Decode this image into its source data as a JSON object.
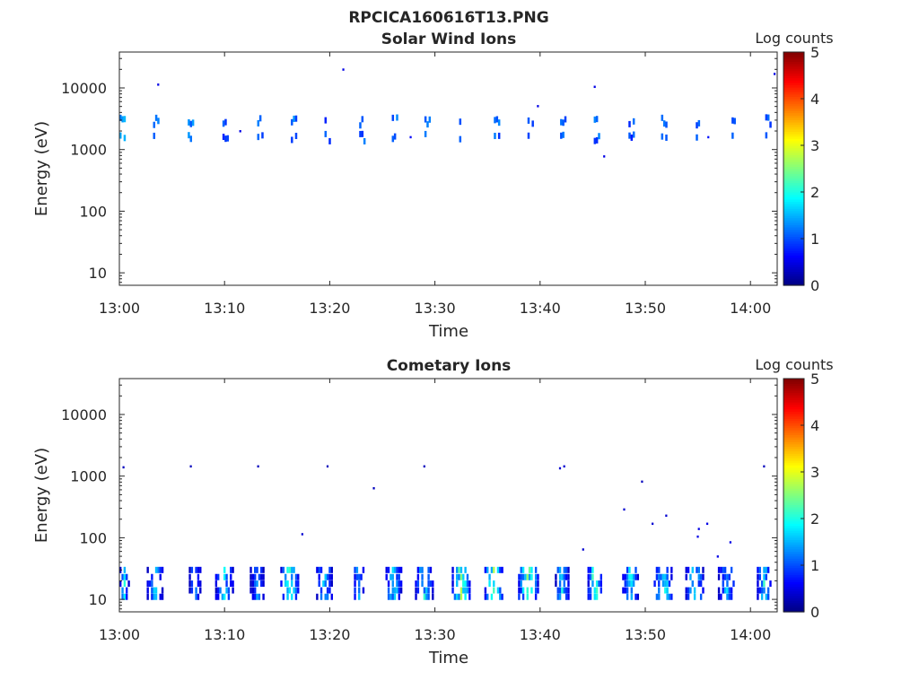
{
  "figure_title": "RPCICA160616T13.PNG",
  "chart_data": [
    {
      "type": "heatmap",
      "title": "Solar Wind Ions",
      "xlabel": "Time",
      "ylabel": "Energy (eV)",
      "colorbar_label": "Log counts",
      "xticks": [
        "13:00",
        "13:10",
        "13:20",
        "13:30",
        "13:40",
        "13:50",
        "14:00"
      ],
      "yticks": [
        "10",
        "100",
        "1000",
        "10000"
      ],
      "cticks": [
        "0",
        "1",
        "2",
        "3",
        "4",
        "5"
      ],
      "xlim_min": [
        0,
        62.5
      ],
      "ylim_eV": [
        6.3,
        38000
      ],
      "clim": [
        0,
        5
      ],
      "bursts": [
        {
          "t": 0,
          "v": 1.3
        },
        {
          "t": 3.2,
          "v": 1.0
        },
        {
          "t": 6.5,
          "v": 1.1
        },
        {
          "t": 9.8,
          "v": 0.9
        },
        {
          "t": 13.1,
          "v": 1.0
        },
        {
          "t": 16.3,
          "v": 1.1
        },
        {
          "t": 19.5,
          "v": 0.9
        },
        {
          "t": 22.8,
          "v": 1.0
        },
        {
          "t": 25.9,
          "v": 1.2
        },
        {
          "t": 29,
          "v": 1.0
        },
        {
          "t": 32.3,
          "v": 1.1
        },
        {
          "t": 35.6,
          "v": 1.0
        },
        {
          "t": 38.8,
          "v": 0.9
        },
        {
          "t": 41.9,
          "v": 1.0
        },
        {
          "t": 45.1,
          "v": 1.0
        },
        {
          "t": 48.4,
          "v": 0.9
        },
        {
          "t": 51.5,
          "v": 1.1
        },
        {
          "t": 54.8,
          "v": 0.9
        },
        {
          "t": 58.2,
          "v": 1.0
        },
        {
          "t": 61.4,
          "v": 0.9
        }
      ],
      "burst_energies_eV": [
        2900,
        1600
      ],
      "points": [
        [
          3.6,
          11400,
          0.5
        ],
        [
          21.2,
          20000,
          0.5
        ],
        [
          39.7,
          5100,
          0.5
        ],
        [
          45.1,
          10500,
          0.5
        ],
        [
          46,
          780,
          0.5
        ],
        [
          11.4,
          2000,
          0.5
        ],
        [
          62.2,
          17000,
          0.5
        ],
        [
          27.6,
          1600,
          0.6
        ],
        [
          55.9,
          1600,
          0.7
        ]
      ]
    },
    {
      "type": "heatmap",
      "title": "Cometary Ions",
      "xlabel": "Time",
      "ylabel": "Energy (eV)",
      "colorbar_label": "Log counts",
      "xticks": [
        "13:00",
        "13:10",
        "13:20",
        "13:30",
        "13:40",
        "13:50",
        "14:00"
      ],
      "yticks": [
        "10",
        "100",
        "1000",
        "10000"
      ],
      "cticks": [
        "0",
        "1",
        "2",
        "3",
        "4",
        "5"
      ],
      "xlim_min": [
        0,
        62.5
      ],
      "ylim_eV": [
        6.3,
        38000
      ],
      "clim": [
        0,
        5
      ],
      "bursts": [
        {
          "t0": 0,
          "t1": 0.8,
          "v": 1.8
        },
        {
          "t0": 2.6,
          "t1": 4,
          "v": 1.6
        },
        {
          "t0": 6.6,
          "t1": 7.6,
          "v": 1.5
        },
        {
          "t0": 9.1,
          "t1": 10.7,
          "v": 1.7
        },
        {
          "t0": 12.4,
          "t1": 13.6,
          "v": 1.3
        },
        {
          "t0": 15.3,
          "t1": 16.8,
          "v": 2.3
        },
        {
          "t0": 18.7,
          "t1": 20,
          "v": 1.6
        },
        {
          "t0": 22.1,
          "t1": 23.2,
          "v": 1.6
        },
        {
          "t0": 25.3,
          "t1": 26.6,
          "v": 1.9
        },
        {
          "t0": 28.1,
          "t1": 29.8,
          "v": 1.8
        },
        {
          "t0": 31.6,
          "t1": 33.2,
          "v": 2.5
        },
        {
          "t0": 34.7,
          "t1": 36.4,
          "v": 2.6
        },
        {
          "t0": 37.9,
          "t1": 39.6,
          "v": 2.5
        },
        {
          "t0": 41.4,
          "t1": 42.6,
          "v": 1.7
        },
        {
          "t0": 44.5,
          "t1": 45.8,
          "v": 2.4
        },
        {
          "t0": 47.8,
          "t1": 49.2,
          "v": 1.8
        },
        {
          "t0": 50.8,
          "t1": 52.3,
          "v": 2.2
        },
        {
          "t0": 53.8,
          "t1": 55.4,
          "v": 1.9
        },
        {
          "t0": 56.9,
          "t1": 58.5,
          "v": 1.6
        },
        {
          "t0": 60.6,
          "t1": 61.9,
          "v": 2.0
        }
      ],
      "burst_energies_eV": [
        30,
        23,
        18,
        14,
        11
      ],
      "points": [
        [
          0.3,
          1400,
          0.3
        ],
        [
          6.7,
          1450,
          0.3
        ],
        [
          13.1,
          1450,
          0.3
        ],
        [
          19.7,
          1450,
          0.3
        ],
        [
          24.1,
          640,
          0.3
        ],
        [
          17.3,
          115,
          0.4
        ],
        [
          28.9,
          1450,
          0.3
        ],
        [
          41.8,
          1350,
          0.4
        ],
        [
          42.2,
          1450,
          0.4
        ],
        [
          44,
          65,
          0.4
        ],
        [
          47.9,
          290,
          0.4
        ],
        [
          49.6,
          820,
          0.3
        ],
        [
          50.6,
          170,
          0.4
        ],
        [
          51.9,
          230,
          0.4
        ],
        [
          54.9,
          105,
          0.5
        ],
        [
          55,
          140,
          0.5
        ],
        [
          55.8,
          170,
          0.5
        ],
        [
          56.8,
          50,
          0.5
        ],
        [
          58,
          85,
          0.5
        ],
        [
          61.2,
          1450,
          0.3
        ]
      ]
    }
  ]
}
